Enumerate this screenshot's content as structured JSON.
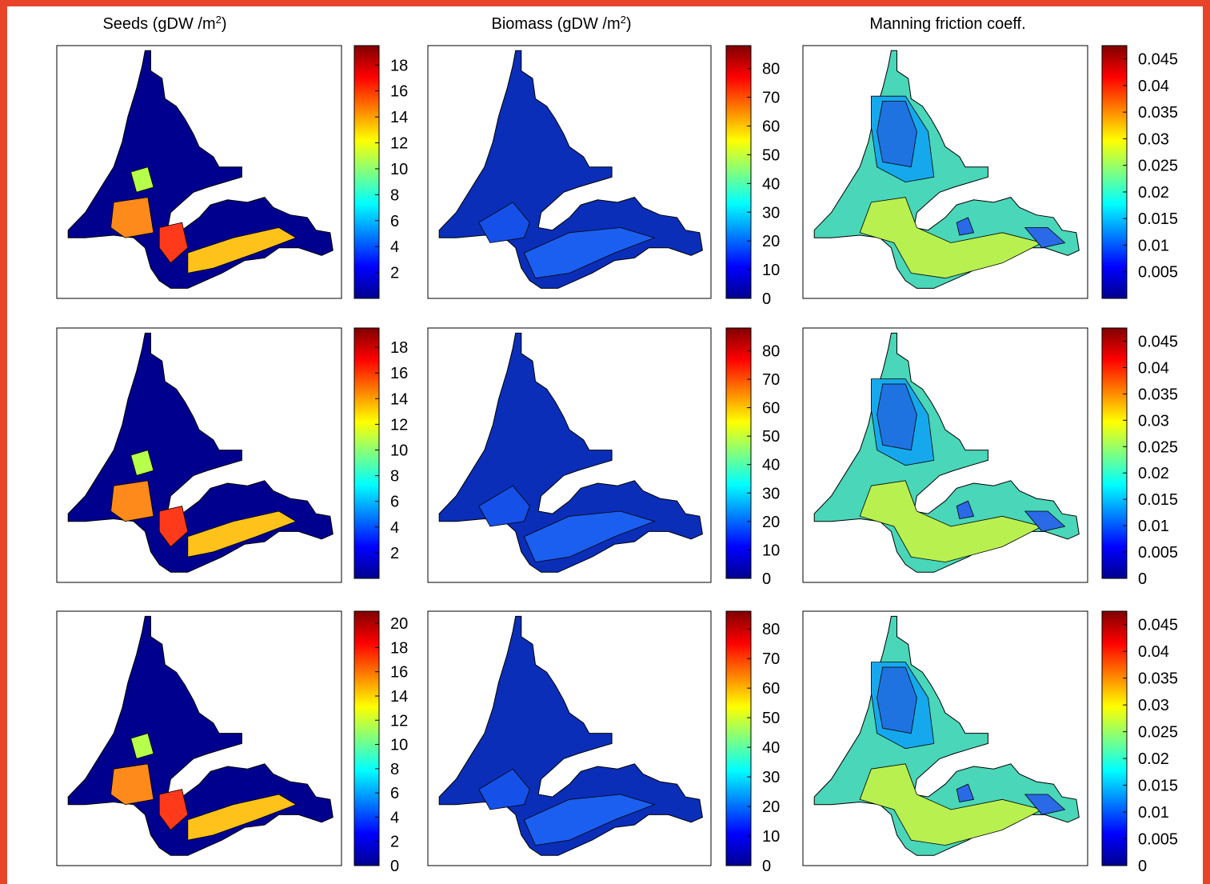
{
  "columns": [
    {
      "title": "Seeds (gDW /m",
      "sup": "2",
      "tail": ")"
    },
    {
      "title": "Biomass (gDW /m",
      "sup": "2",
      "tail": ")"
    },
    {
      "title": "Manning friction coeff.",
      "sup": "",
      "tail": ""
    }
  ],
  "colormap": "jet",
  "chart_data": [
    {
      "type": "heatmap",
      "row": 1,
      "variable": "Seeds",
      "map_fill": "#00008f",
      "colorbar": {
        "range": [
          0,
          19.5
        ],
        "ticks": [
          "2",
          "4",
          "6",
          "8",
          "10",
          "12",
          "14",
          "16",
          "18"
        ],
        "tick_values": [
          2,
          4,
          6,
          8,
          10,
          12,
          14,
          16,
          18
        ]
      }
    },
    {
      "type": "heatmap",
      "row": 1,
      "variable": "Biomass",
      "map_fill": "#0b2eb8",
      "colorbar": {
        "range": [
          0,
          88
        ],
        "ticks": [
          "0",
          "10",
          "20",
          "30",
          "40",
          "50",
          "60",
          "70",
          "80"
        ],
        "tick_values": [
          0,
          10,
          20,
          30,
          40,
          50,
          60,
          70,
          80
        ]
      }
    },
    {
      "type": "heatmap",
      "row": 1,
      "variable": "Manning friction coeff.",
      "map_fill": "#4ad6b8",
      "colorbar": {
        "range": [
          0,
          0.0475
        ],
        "ticks": [
          "0.005",
          "0.01",
          "0.015",
          "0.02",
          "0.025",
          "0.03",
          "0.035",
          "0.04",
          "0.045"
        ],
        "tick_values": [
          0.005,
          0.01,
          0.015,
          0.02,
          0.025,
          0.03,
          0.035,
          0.04,
          0.045
        ]
      }
    },
    {
      "type": "heatmap",
      "row": 2,
      "variable": "Seeds",
      "map_fill": "#00008f",
      "colorbar": {
        "range": [
          0,
          19.5
        ],
        "ticks": [
          "2",
          "4",
          "6",
          "8",
          "10",
          "12",
          "14",
          "16",
          "18"
        ],
        "tick_values": [
          2,
          4,
          6,
          8,
          10,
          12,
          14,
          16,
          18
        ]
      }
    },
    {
      "type": "heatmap",
      "row": 2,
      "variable": "Biomass",
      "map_fill": "#0b2eb8",
      "colorbar": {
        "range": [
          0,
          88
        ],
        "ticks": [
          "0",
          "10",
          "20",
          "30",
          "40",
          "50",
          "60",
          "70",
          "80"
        ],
        "tick_values": [
          0,
          10,
          20,
          30,
          40,
          50,
          60,
          70,
          80
        ]
      }
    },
    {
      "type": "heatmap",
      "row": 2,
      "variable": "Manning friction coeff.",
      "map_fill": "#4ad6b8",
      "colorbar": {
        "range": [
          0,
          0.0475
        ],
        "ticks": [
          "0",
          "0.005",
          "0.01",
          "0.015",
          "0.02",
          "0.025",
          "0.03",
          "0.035",
          "0.04",
          "0.045"
        ],
        "tick_values": [
          0,
          0.005,
          0.01,
          0.015,
          0.02,
          0.025,
          0.03,
          0.035,
          0.04,
          0.045
        ]
      }
    },
    {
      "type": "heatmap",
      "row": 3,
      "variable": "Seeds",
      "map_fill": "#00008f",
      "colorbar": {
        "range": [
          0,
          21
        ],
        "ticks": [
          "0",
          "2",
          "4",
          "6",
          "8",
          "10",
          "12",
          "14",
          "16",
          "18",
          "20"
        ],
        "tick_values": [
          0,
          2,
          4,
          6,
          8,
          10,
          12,
          14,
          16,
          18,
          20
        ]
      }
    },
    {
      "type": "heatmap",
      "row": 3,
      "variable": "Biomass",
      "map_fill": "#0b2eb8",
      "colorbar": {
        "range": [
          0,
          86
        ],
        "ticks": [
          "0",
          "10",
          "20",
          "30",
          "40",
          "50",
          "60",
          "70",
          "80"
        ],
        "tick_values": [
          0,
          10,
          20,
          30,
          40,
          50,
          60,
          70,
          80
        ]
      }
    },
    {
      "type": "heatmap",
      "row": 3,
      "variable": "Manning friction coeff.",
      "map_fill": "#4ad6b8",
      "colorbar": {
        "range": [
          0,
          0.0475
        ],
        "ticks": [
          "0",
          "0.005",
          "0.01",
          "0.015",
          "0.02",
          "0.025",
          "0.03",
          "0.035",
          "0.04",
          "0.045"
        ],
        "tick_values": [
          0,
          0.005,
          0.01,
          0.015,
          0.02,
          0.025,
          0.03,
          0.035,
          0.04,
          0.045
        ]
      }
    }
  ]
}
